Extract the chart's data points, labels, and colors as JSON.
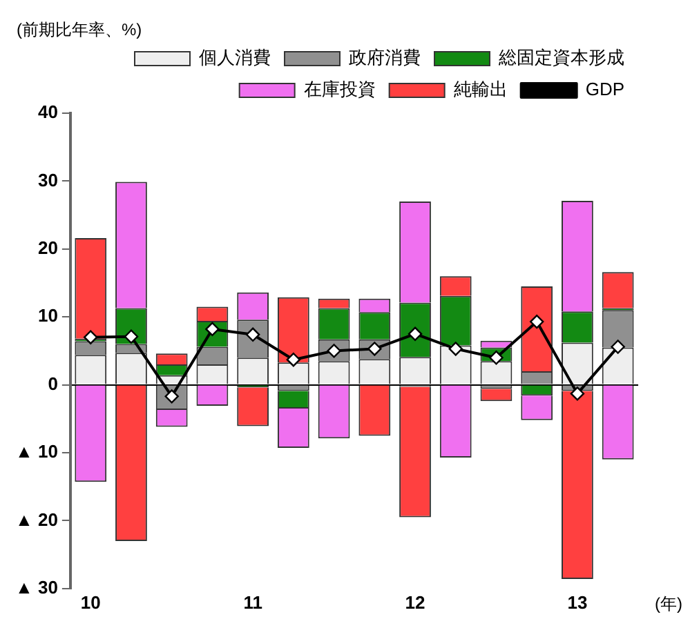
{
  "chart_data": {
    "type": "bar",
    "stacked": true,
    "ylabel": "(前期比年率、%)",
    "annotations": [
      "(年)"
    ],
    "categories": [
      "10",
      null,
      null,
      null,
      "11",
      null,
      null,
      null,
      "12",
      null,
      null,
      null,
      "13",
      null
    ],
    "series": [
      {
        "name": "個人消費",
        "color": "#eeeeee",
        "values": [
          4.4,
          4.7,
          1.4,
          3.0,
          4.0,
          3.3,
          3.5,
          3.8,
          4.1,
          5.8,
          3.5,
          0,
          6.2,
          5.5
        ]
      },
      {
        "name": "政府消費",
        "color": "#909090",
        "values": [
          2.0,
          1.3,
          -3.7,
          2.6,
          5.6,
          -0.9,
          3.2,
          2.9,
          -0.3,
          0,
          -0.6,
          2.0,
          -0.9,
          5.5
        ]
      },
      {
        "name": "総固定資本形成",
        "color": "#138a13",
        "values": [
          0.4,
          5.3,
          1.6,
          3.8,
          -0.4,
          -2.6,
          4.6,
          4.0,
          8.0,
          7.3,
          2.0,
          -1.6,
          4.6,
          0.3
        ]
      },
      {
        "name": "在庫投資",
        "color": "#f070f0",
        "values": [
          -14.3,
          18.6,
          -2.5,
          -3.1,
          4.0,
          -5.8,
          -7.9,
          2.0,
          14.9,
          -10.7,
          1.0,
          -3.6,
          16.3,
          -11.0
        ]
      },
      {
        "name": "純輸出",
        "color": "#ff4040",
        "values": [
          14.8,
          -23.0,
          1.6,
          2.1,
          -5.7,
          9.6,
          1.4,
          -7.5,
          -19.2,
          2.9,
          -1.8,
          12.5,
          -27.7,
          5.3
        ]
      },
      {
        "name": "GDP",
        "type": "line",
        "color": "#000000",
        "marker": "diamond",
        "values": [
          7.0,
          7.1,
          -1.7,
          8.2,
          7.4,
          3.7,
          5.0,
          5.3,
          7.5,
          5.3,
          4.0,
          9.3,
          -1.3,
          5.6
        ]
      }
    ],
    "ylim": [
      -30,
      40
    ],
    "yticks": [
      {
        "value": -30,
        "label": "▲ 30"
      },
      {
        "value": -20,
        "label": "▲ 20"
      },
      {
        "value": -10,
        "label": "▲ 10"
      },
      0,
      10,
      20,
      30,
      40
    ],
    "legend": "top right"
  }
}
